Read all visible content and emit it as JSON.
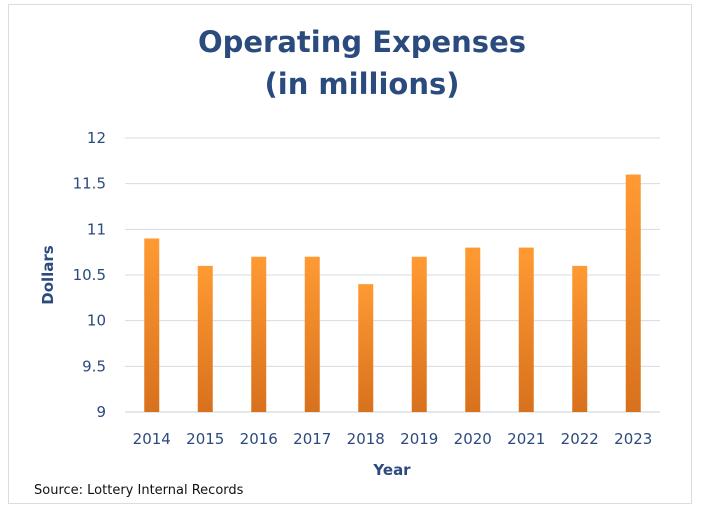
{
  "chart_data": {
    "type": "bar",
    "title_lines": [
      "Operating Expenses",
      "(in millions)"
    ],
    "xlabel": "Year",
    "ylabel": "Dollars",
    "categories": [
      "2014",
      "2015",
      "2016",
      "2017",
      "2018",
      "2019",
      "2020",
      "2021",
      "2022",
      "2023"
    ],
    "values": [
      10.9,
      10.6,
      10.7,
      10.7,
      10.4,
      10.7,
      10.8,
      10.8,
      10.6,
      11.6
    ],
    "ylim": [
      9,
      12
    ],
    "yticks": [
      "9",
      "9.5",
      "10",
      "10.5",
      "11",
      "11.5",
      "12"
    ],
    "grid": true,
    "legend": "none",
    "colors": {
      "bar_top": "#ff9a33",
      "bar_bottom": "#d8711c",
      "text": "#2b4a7d",
      "grid": "#d6dbe4"
    }
  },
  "source_note": "Source:  Lottery Internal Records"
}
